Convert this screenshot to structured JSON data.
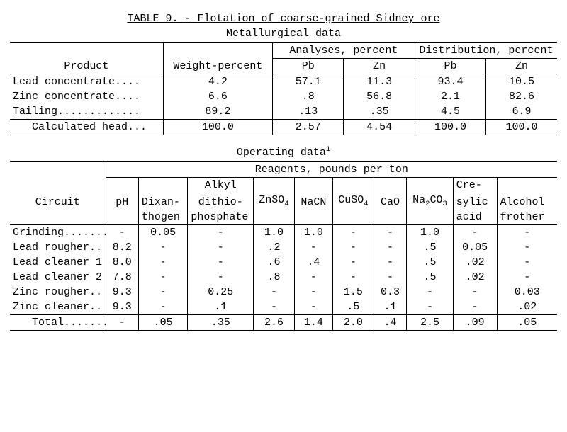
{
  "colors": {
    "fg": "#000000",
    "bg": "#ffffff"
  },
  "title": "TABLE 9. - Flotation of coarse-grained Sidney ore",
  "table1": {
    "caption": "Metallurgical data",
    "headers": {
      "product": "Product",
      "weight": "Weight-percent",
      "analyses": "Analyses, percent",
      "distribution": "Distribution, percent",
      "pb": "Pb",
      "zn": "Zn"
    },
    "rows": [
      {
        "product": "Lead concentrate....",
        "weight": "4.2",
        "a_pb": "57.1",
        "a_zn": "11.3",
        "d_pb": "93.4",
        "d_zn": "10.5"
      },
      {
        "product": "Zinc concentrate....",
        "weight": "6.6",
        "a_pb": ".8",
        "a_zn": "56.8",
        "d_pb": "2.1",
        "d_zn": "82.6"
      },
      {
        "product": "Tailing.............",
        "weight": "89.2",
        "a_pb": ".13",
        "a_zn": ".35",
        "d_pb": "4.5",
        "d_zn": "6.9"
      },
      {
        "product": "   Calculated head...",
        "weight": "100.0",
        "a_pb": "2.57",
        "a_zn": "4.54",
        "d_pb": "100.0",
        "d_zn": "100.0"
      }
    ]
  },
  "table2": {
    "caption": "Operating data",
    "footnote_mark": "1",
    "headers": {
      "circuit": "Circuit",
      "reagents": "Reagents, pounds per ton",
      "ph": "pH",
      "dixanthogen_l1": "Dixan-",
      "dixanthogen_l2": "thogen",
      "alkyl_l1": "Alkyl",
      "alkyl_l2": "dithio-",
      "alkyl_l3": "phosphate",
      "znso4_pre": "ZnSO",
      "znso4_sub": "4",
      "nacn": "NaCN",
      "cuso4_pre": "CuSO",
      "cuso4_sub": "4",
      "cao": "CaO",
      "na2co3_pre": "Na",
      "na2co3_sub1": "2",
      "na2co3_mid": "CO",
      "na2co3_sub2": "3",
      "cresylic_l1": "Cre-",
      "cresylic_l2": "sylic",
      "cresylic_l3": "acid",
      "alcohol_l1": "Alcohol",
      "alcohol_l2": "frother"
    },
    "rows": [
      {
        "circuit": "Grinding.......",
        "ph": "-",
        "dix": "0.05",
        "alk": "-",
        "znso4": "1.0",
        "nacn": "1.0",
        "cuso4": "-",
        "cao": "-",
        "na2co3": "1.0",
        "cres": "-",
        "alc": "-"
      },
      {
        "circuit": "Lead rougher..",
        "ph": "8.2",
        "dix": "-",
        "alk": "-",
        "znso4": ".2",
        "nacn": "-",
        "cuso4": "-",
        "cao": "-",
        "na2co3": ".5",
        "cres": "0.05",
        "alc": "-"
      },
      {
        "circuit": "Lead cleaner 1",
        "ph": "8.0",
        "dix": "-",
        "alk": "-",
        "znso4": ".6",
        "nacn": ".4",
        "cuso4": "-",
        "cao": "-",
        "na2co3": ".5",
        "cres": ".02",
        "alc": "-"
      },
      {
        "circuit": "Lead cleaner 2",
        "ph": "7.8",
        "dix": "-",
        "alk": "-",
        "znso4": ".8",
        "nacn": "-",
        "cuso4": "-",
        "cao": "-",
        "na2co3": ".5",
        "cres": ".02",
        "alc": "-"
      },
      {
        "circuit": "Zinc rougher..",
        "ph": "9.3",
        "dix": "-",
        "alk": "0.25",
        "znso4": "-",
        "nacn": "-",
        "cuso4": "1.5",
        "cao": "0.3",
        "na2co3": "-",
        "cres": "-",
        "alc": "0.03"
      },
      {
        "circuit": "Zinc cleaner..",
        "ph": "9.3",
        "dix": "-",
        "alk": ".1",
        "znso4": "-",
        "nacn": "-",
        "cuso4": ".5",
        "cao": ".1",
        "na2co3": "-",
        "cres": "-",
        "alc": ".02"
      },
      {
        "circuit": "   Total........",
        "ph": "-",
        "dix": ".05",
        "alk": ".35",
        "znso4": "2.6",
        "nacn": "1.4",
        "cuso4": "2.0",
        "cao": ".4",
        "na2co3": "2.5",
        "cres": ".09",
        "alc": ".05"
      }
    ]
  }
}
